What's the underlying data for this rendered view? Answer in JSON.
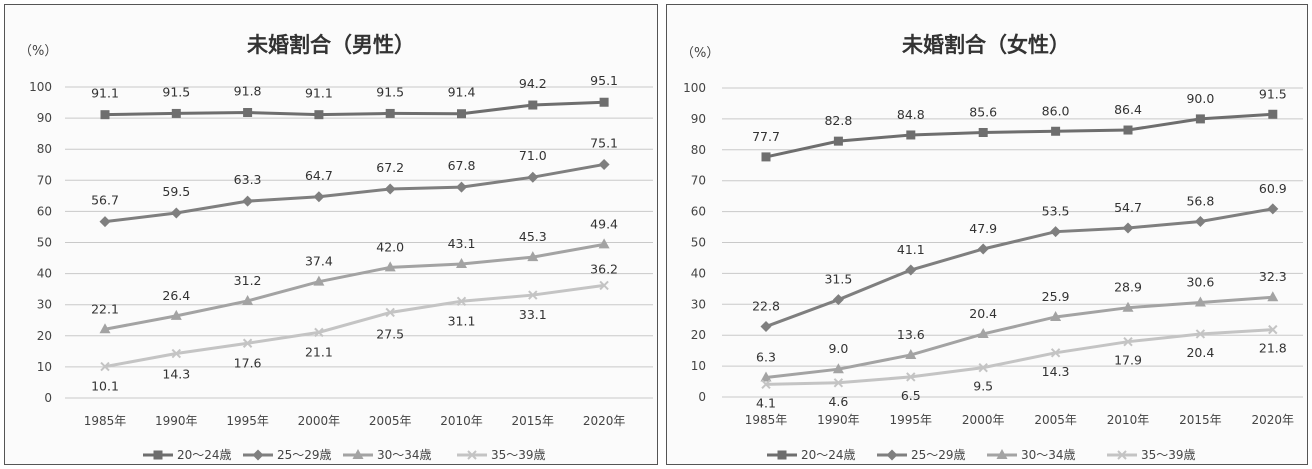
{
  "colors": {
    "series_20_24": "#6e6e6e",
    "series_25_29": "#7f7f7f",
    "series_30_34": "#a3a3a3",
    "series_35_39": "#c4c4c4"
  },
  "chart_data": [
    {
      "type": "line",
      "title": "未婚割合（男性）",
      "ylabel": "（%）",
      "ylim": [
        0,
        100
      ],
      "yticks": [
        0,
        10,
        20,
        30,
        40,
        50,
        60,
        70,
        80,
        90,
        100
      ],
      "ytick_labels": [
        "0",
        "10",
        "20",
        "30",
        "40",
        "50",
        "60",
        "70",
        "80",
        "90",
        "100"
      ],
      "grid": true,
      "legend_position": "bottom",
      "categories": [
        "1985年",
        "1990年",
        "1995年",
        "2000年",
        "2005年",
        "2010年",
        "2015年",
        "2020年"
      ],
      "series": [
        {
          "name": "20～24歳",
          "marker": "square",
          "values": [
            91.1,
            91.5,
            91.8,
            91.1,
            91.5,
            91.4,
            94.2,
            95.1
          ],
          "labels": [
            "91.1",
            "91.5",
            "91.8",
            "91.1",
            "91.5",
            "91.4",
            "94.2",
            "95.1"
          ]
        },
        {
          "name": "25～29歳",
          "marker": "diamond",
          "values": [
            56.7,
            59.5,
            63.3,
            64.7,
            67.2,
            67.8,
            71.0,
            75.1
          ],
          "labels": [
            "56.7",
            "59.5",
            "63.3",
            "64.7",
            "67.2",
            "67.8",
            "71.0",
            "75.1"
          ]
        },
        {
          "name": "30～34歳",
          "marker": "triangle",
          "values": [
            22.1,
            26.4,
            31.2,
            37.4,
            42.0,
            43.1,
            45.3,
            49.4
          ],
          "labels": [
            "22.1",
            "26.4",
            "31.2",
            "37.4",
            "42.0",
            "43.1",
            "45.3",
            "49.4"
          ]
        },
        {
          "name": "35～39歳",
          "marker": "cross",
          "values": [
            10.1,
            14.3,
            17.6,
            21.1,
            27.5,
            31.1,
            33.1,
            36.2
          ],
          "labels": [
            "10.1",
            "14.3",
            "17.6",
            "21.1",
            "27.5",
            "31.1",
            "33.1",
            "36.2"
          ]
        }
      ]
    },
    {
      "type": "line",
      "title": "未婚割合（女性）",
      "ylabel": "（%）",
      "ylim": [
        0,
        100
      ],
      "yticks": [
        0,
        10,
        20,
        30,
        40,
        50,
        60,
        70,
        80,
        90,
        100
      ],
      "ytick_labels": [
        "0",
        "10",
        "20",
        "30",
        "40",
        "50",
        "60",
        "70",
        "80",
        "90",
        "100"
      ],
      "grid": true,
      "legend_position": "bottom",
      "categories": [
        "1985年",
        "1990年",
        "1995年",
        "2000年",
        "2005年",
        "2010年",
        "2015年",
        "2020年"
      ],
      "series": [
        {
          "name": "20～24歳",
          "marker": "square",
          "values": [
            77.7,
            82.8,
            84.8,
            85.6,
            86.0,
            86.4,
            90.0,
            91.5
          ],
          "labels": [
            "77.7",
            "82.8",
            "84.8",
            "85.6",
            "86.0",
            "86.4",
            "90.0",
            "91.5"
          ]
        },
        {
          "name": "25～29歳",
          "marker": "diamond",
          "values": [
            22.8,
            31.5,
            41.1,
            47.9,
            53.5,
            54.7,
            56.8,
            60.9
          ],
          "labels": [
            "22.8",
            "31.5",
            "41.1",
            "47.9",
            "53.5",
            "54.7",
            "56.8",
            "60.9"
          ]
        },
        {
          "name": "30～34歳",
          "marker": "triangle",
          "values": [
            6.3,
            9.0,
            13.6,
            20.4,
            25.9,
            28.9,
            30.6,
            32.3
          ],
          "labels": [
            "6.3",
            "9.0",
            "13.6",
            "20.4",
            "25.9",
            "28.9",
            "30.6",
            "32.3"
          ]
        },
        {
          "name": "35～39歳",
          "marker": "cross",
          "values": [
            4.1,
            4.6,
            6.5,
            9.5,
            14.3,
            17.9,
            20.4,
            21.8
          ],
          "labels": [
            "4.1",
            "4.6",
            "6.5",
            "9.5",
            "14.3",
            "17.9",
            "20.4",
            "21.8"
          ]
        }
      ]
    }
  ]
}
